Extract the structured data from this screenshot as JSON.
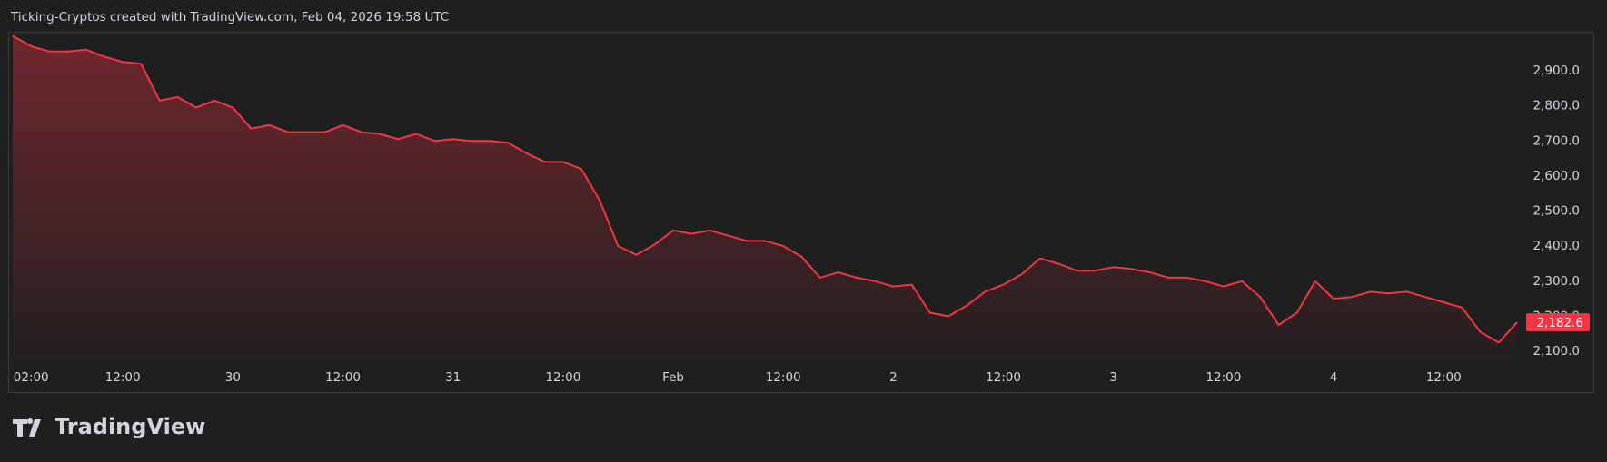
{
  "chart_data": {
    "type": "area",
    "title": "Ticking-Cryptos created with TradingView.com, Feb 04, 2026 19:58 UTC",
    "brand": "TradingView",
    "color": "#f23645",
    "categories": [
      null,
      "02:00",
      null,
      null,
      null,
      null,
      "12:00",
      null,
      null,
      null,
      null,
      null,
      "30",
      null,
      null,
      null,
      null,
      null,
      "12:00",
      null,
      null,
      null,
      null,
      null,
      "31",
      null,
      null,
      null,
      null,
      null,
      "12:00",
      null,
      null,
      null,
      null,
      null,
      "Feb",
      null,
      null,
      null,
      null,
      null,
      "12:00",
      null,
      null,
      null,
      null,
      null,
      "2",
      null,
      null,
      null,
      null,
      null,
      "12:00",
      null,
      null,
      null,
      null,
      null,
      "3",
      null,
      null,
      null,
      null,
      null,
      "12:00",
      null,
      null,
      null,
      null,
      null,
      "4",
      null,
      null,
      null,
      null,
      null,
      "12:00",
      null,
      null,
      null,
      null
    ],
    "values": [
      3000,
      2970,
      2955,
      2955,
      2960,
      2940,
      2925,
      2920,
      2815,
      2825,
      2795,
      2815,
      2795,
      2735,
      2745,
      2725,
      2725,
      2725,
      2745,
      2725,
      2720,
      2705,
      2720,
      2700,
      2705,
      2700,
      2700,
      2695,
      2665,
      2640,
      2640,
      2620,
      2530,
      2400,
      2375,
      2405,
      2445,
      2435,
      2445,
      2430,
      2415,
      2415,
      2400,
      2370,
      2310,
      2325,
      2310,
      2300,
      2285,
      2290,
      2210,
      2200,
      2230,
      2270,
      2290,
      2320,
      2365,
      2350,
      2330,
      2330,
      2340,
      2335,
      2325,
      2310,
      2310,
      2300,
      2285,
      2300,
      2255,
      2175,
      2210,
      2300,
      2250,
      2255,
      2270,
      2265,
      2270,
      2255,
      2240,
      2225,
      2155,
      2125,
      2182.6
    ],
    "last_value_label": "2,182.6",
    "ylim": [
      2075,
      3010
    ],
    "yticks": [
      {
        "value": 2100,
        "label": "2,100.0"
      },
      {
        "value": 2200,
        "label": "2,200.0"
      },
      {
        "value": 2300,
        "label": "2,300.0"
      },
      {
        "value": 2400,
        "label": "2,400.0"
      },
      {
        "value": 2500,
        "label": "2,500.0"
      },
      {
        "value": 2600,
        "label": "2,600.0"
      },
      {
        "value": 2700,
        "label": "2,700.0"
      },
      {
        "value": 2800,
        "label": "2,800.0"
      },
      {
        "value": 2900,
        "label": "2,900.0"
      }
    ]
  }
}
